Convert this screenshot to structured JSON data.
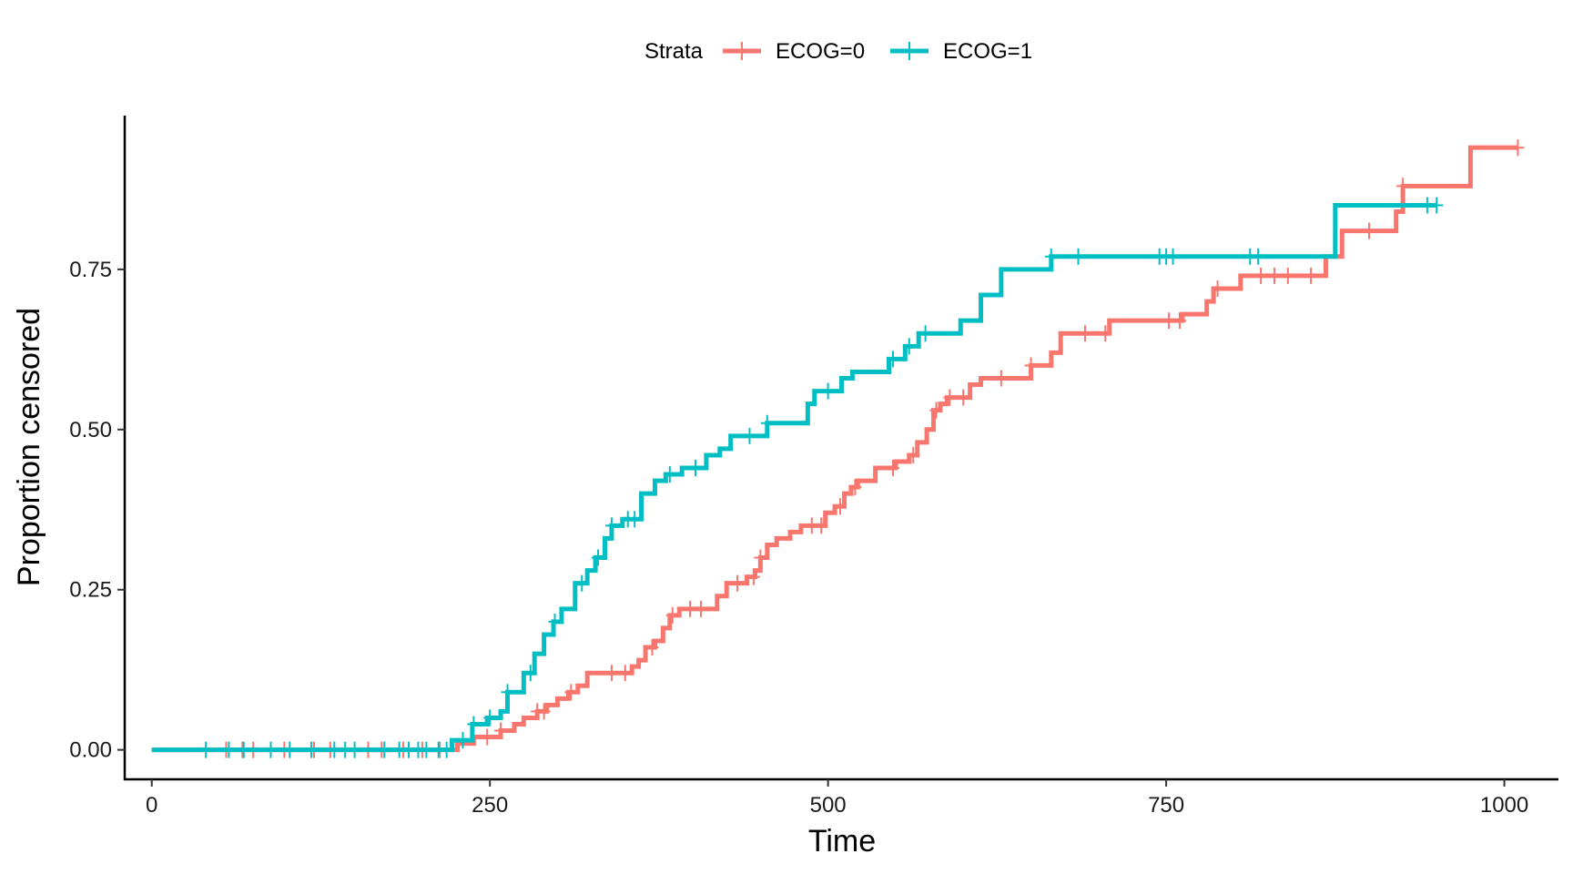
{
  "chart_data": {
    "type": "line",
    "xlabel": "Time",
    "ylabel": "Proportion censored",
    "xlim": [
      -20,
      1040
    ],
    "ylim": [
      -0.046,
      0.99
    ],
    "xticks": [
      0,
      250,
      500,
      750,
      1000
    ],
    "xtick_labels": [
      "0",
      "250",
      "500",
      "750",
      "1000"
    ],
    "yticks": [
      0,
      0.25,
      0.5,
      0.75
    ],
    "ytick_labels": [
      "0.00",
      "0.25",
      "0.50",
      "0.75"
    ],
    "grid": false,
    "legend": {
      "title": "Strata",
      "position": "top",
      "entries": [
        "ECOG=0",
        "ECOG=1"
      ]
    },
    "series": [
      {
        "name": "ECOG=0",
        "color": "#F8766D",
        "steps": [
          [
            0,
            0
          ],
          [
            226,
            0.01
          ],
          [
            238,
            0.02
          ],
          [
            258,
            0.03
          ],
          [
            268,
            0.04
          ],
          [
            275,
            0.05
          ],
          [
            285,
            0.06
          ],
          [
            292,
            0.07
          ],
          [
            300,
            0.08
          ],
          [
            308,
            0.09
          ],
          [
            315,
            0.1
          ],
          [
            322,
            0.12
          ],
          [
            355,
            0.13
          ],
          [
            360,
            0.14
          ],
          [
            365,
            0.16
          ],
          [
            372,
            0.17
          ],
          [
            378,
            0.19
          ],
          [
            383,
            0.21
          ],
          [
            390,
            0.22
          ],
          [
            418,
            0.24
          ],
          [
            425,
            0.26
          ],
          [
            440,
            0.27
          ],
          [
            446,
            0.28
          ],
          [
            450,
            0.3
          ],
          [
            455,
            0.32
          ],
          [
            462,
            0.33
          ],
          [
            472,
            0.34
          ],
          [
            480,
            0.35
          ],
          [
            498,
            0.37
          ],
          [
            505,
            0.38
          ],
          [
            512,
            0.4
          ],
          [
            517,
            0.41
          ],
          [
            522,
            0.42
          ],
          [
            535,
            0.44
          ],
          [
            550,
            0.45
          ],
          [
            560,
            0.46
          ],
          [
            566,
            0.48
          ],
          [
            573,
            0.5
          ],
          [
            578,
            0.53
          ],
          [
            583,
            0.54
          ],
          [
            588,
            0.55
          ],
          [
            605,
            0.57
          ],
          [
            613,
            0.58
          ],
          [
            650,
            0.6
          ],
          [
            665,
            0.62
          ],
          [
            672,
            0.65
          ],
          [
            708,
            0.67
          ],
          [
            762,
            0.68
          ],
          [
            780,
            0.7
          ],
          [
            785,
            0.72
          ],
          [
            805,
            0.74
          ],
          [
            868,
            0.77
          ],
          [
            880,
            0.81
          ],
          [
            920,
            0.84
          ],
          [
            925,
            0.88
          ],
          [
            975,
            0.94
          ],
          [
            1010,
            0.94
          ]
        ],
        "censor_times": [
          55,
          67,
          75,
          98,
          120,
          132,
          160,
          170,
          186,
          200,
          213,
          248,
          258,
          285,
          290,
          310,
          340,
          350,
          370,
          385,
          398,
          406,
          433,
          445,
          450,
          488,
          495,
          509,
          520,
          548,
          563,
          580,
          590,
          600,
          628,
          650,
          690,
          705,
          752,
          760,
          788,
          820,
          830,
          840,
          857,
          900,
          925,
          1010
        ]
      },
      {
        "name": "ECOG=1",
        "color": "#00BFC4",
        "steps": [
          [
            0,
            0
          ],
          [
            222,
            0.015
          ],
          [
            237,
            0.04
          ],
          [
            248,
            0.05
          ],
          [
            258,
            0.06
          ],
          [
            263,
            0.09
          ],
          [
            275,
            0.12
          ],
          [
            283,
            0.15
          ],
          [
            290,
            0.18
          ],
          [
            297,
            0.2
          ],
          [
            303,
            0.22
          ],
          [
            313,
            0.26
          ],
          [
            322,
            0.28
          ],
          [
            328,
            0.3
          ],
          [
            335,
            0.33
          ],
          [
            340,
            0.35
          ],
          [
            348,
            0.36
          ],
          [
            362,
            0.4
          ],
          [
            372,
            0.42
          ],
          [
            380,
            0.43
          ],
          [
            392,
            0.44
          ],
          [
            410,
            0.46
          ],
          [
            420,
            0.47
          ],
          [
            428,
            0.49
          ],
          [
            455,
            0.51
          ],
          [
            485,
            0.54
          ],
          [
            490,
            0.56
          ],
          [
            510,
            0.58
          ],
          [
            518,
            0.59
          ],
          [
            545,
            0.61
          ],
          [
            557,
            0.63
          ],
          [
            567,
            0.65
          ],
          [
            598,
            0.67
          ],
          [
            613,
            0.71
          ],
          [
            628,
            0.75
          ],
          [
            665,
            0.77
          ],
          [
            875,
            0.85
          ],
          [
            950,
            0.85
          ]
        ],
        "censor_times": [
          40,
          57,
          68,
          88,
          102,
          118,
          135,
          143,
          150,
          172,
          183,
          190,
          197,
          203,
          212,
          218,
          230,
          238,
          250,
          263,
          280,
          298,
          318,
          330,
          340,
          352,
          357,
          383,
          402,
          442,
          455,
          500,
          548,
          560,
          572,
          665,
          685,
          745,
          750,
          755,
          812,
          818,
          943,
          950
        ]
      }
    ]
  }
}
